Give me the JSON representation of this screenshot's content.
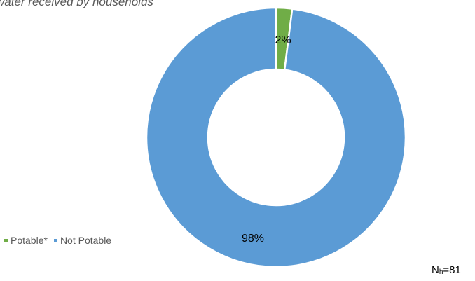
{
  "chart_data": {
    "type": "pie",
    "donut": true,
    "title": "water received by households",
    "categories": [
      "Potable*",
      "Not Potable"
    ],
    "values": [
      2,
      98
    ],
    "data_labels": [
      "2%",
      "98%"
    ],
    "colors": [
      "#70ad47",
      "#5b9bd5"
    ],
    "legend": "bottom-left",
    "note_prefix": "N",
    "note_subscript": "h",
    "note_value": "=81"
  }
}
